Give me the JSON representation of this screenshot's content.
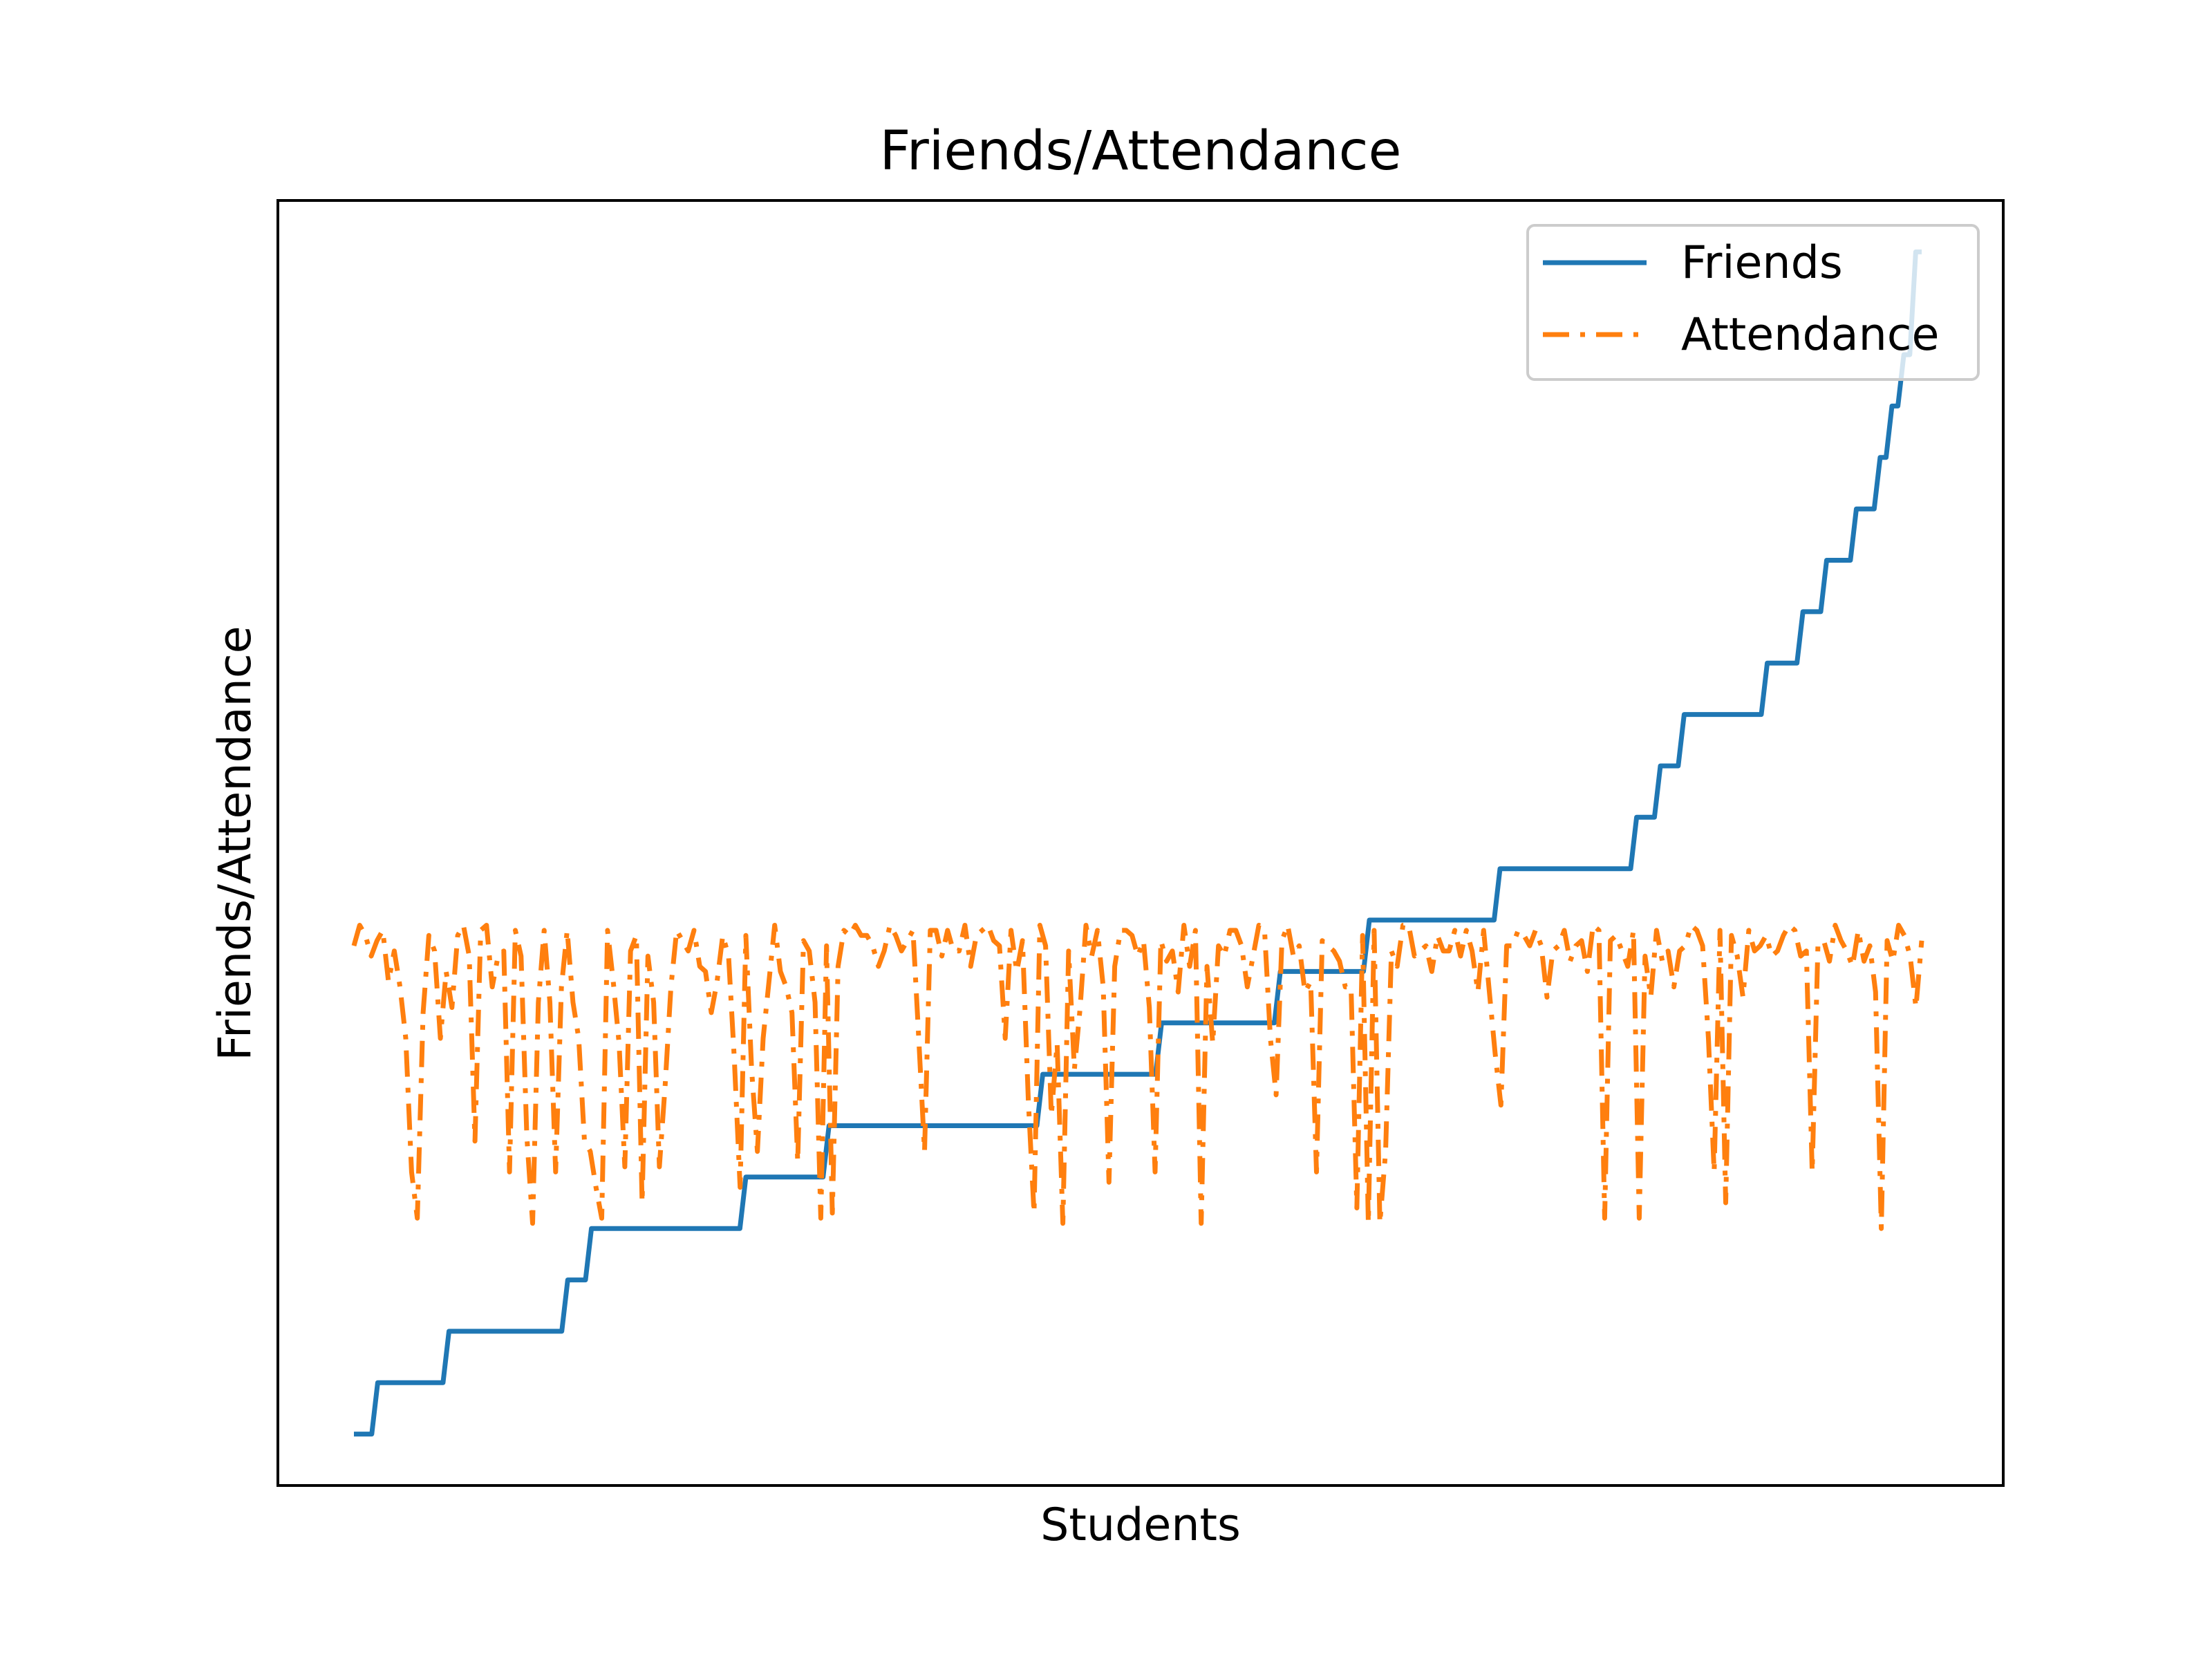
{
  "chart_data": {
    "type": "line",
    "title": "Friends/Attendance",
    "xlabel": "Students",
    "ylabel": "Friends/Attendance",
    "x_ticks_visible": false,
    "y_ticks_visible": false,
    "grid": false,
    "legend_position": "upper right",
    "ylim": [
      0,
      25
    ],
    "series": [
      {
        "name": "Friends",
        "color": "#1f77b4",
        "linestyle": "solid",
        "values": [
          1,
          1,
          1,
          1,
          2,
          2,
          2,
          2,
          2,
          2,
          2,
          2,
          2,
          2,
          2,
          2,
          3,
          3,
          3,
          3,
          3,
          3,
          3,
          3,
          3,
          3,
          3,
          3,
          3,
          3,
          3,
          3,
          3,
          3,
          3,
          3,
          4,
          4,
          4,
          4,
          5,
          5,
          5,
          5,
          5,
          5,
          5,
          5,
          5,
          5,
          5,
          5,
          5,
          5,
          5,
          5,
          5,
          5,
          5,
          5,
          5,
          5,
          5,
          5,
          5,
          5,
          6,
          6,
          6,
          6,
          6,
          6,
          6,
          6,
          6,
          6,
          6,
          6,
          6,
          6,
          7,
          7,
          7,
          7,
          7,
          7,
          7,
          7,
          7,
          7,
          7,
          7,
          7,
          7,
          7,
          7,
          7,
          7,
          7,
          7,
          7,
          7,
          7,
          7,
          7,
          7,
          7,
          7,
          7,
          7,
          7,
          7,
          7,
          7,
          7,
          7,
          8,
          8,
          8,
          8,
          8,
          8,
          8,
          8,
          8,
          8,
          8,
          8,
          8,
          8,
          8,
          8,
          8,
          8,
          8,
          8,
          9,
          9,
          9,
          9,
          9,
          9,
          9,
          9,
          9,
          9,
          9,
          9,
          9,
          9,
          9,
          9,
          9,
          9,
          9,
          9,
          10,
          10,
          10,
          10,
          10,
          10,
          10,
          10,
          10,
          10,
          10,
          10,
          10,
          10,
          10,
          11,
          11,
          11,
          11,
          11,
          11,
          11,
          11,
          11,
          11,
          11,
          11,
          11,
          11,
          11,
          11,
          11,
          11,
          11,
          11,
          11,
          11,
          12,
          12,
          12,
          12,
          12,
          12,
          12,
          12,
          12,
          12,
          12,
          12,
          12,
          12,
          12,
          12,
          12,
          12,
          12,
          12,
          12,
          12,
          12,
          13,
          13,
          13,
          13,
          14,
          14,
          14,
          14,
          15,
          15,
          15,
          15,
          15,
          15,
          15,
          15,
          15,
          15,
          15,
          15,
          15,
          15,
          16,
          16,
          16,
          16,
          16,
          16,
          17,
          17,
          17,
          17,
          18,
          18,
          18,
          18,
          18,
          19,
          19,
          19,
          19,
          20,
          20,
          21,
          21,
          22,
          22,
          24,
          24
        ]
      },
      {
        "name": "Attendance",
        "color": "#ff7f0e",
        "linestyle": "dashdot",
        "values": [
          10.5,
          10.9,
          10.7,
          10.3,
          10.6,
          10.8,
          9.8,
          10.4,
          9.7,
          8.7,
          6.1,
          5.2,
          9.2,
          10.7,
          10.4,
          8.7,
          10.0,
          9.3,
          10.7,
          10.9,
          10.3,
          6.7,
          10.8,
          10.9,
          9.7,
          10.3,
          10.4,
          6.1,
          10.8,
          10.3,
          6.8,
          5.1,
          9.4,
          10.8,
          9.4,
          6.1,
          9.7,
          10.8,
          9.4,
          8.7,
          6.7,
          6.5,
          5.8,
          5.2,
          10.8,
          9.8,
          8.6,
          6.2,
          10.4,
          10.7,
          5.5,
          10.3,
          9.4,
          6.2,
          7.8,
          9.7,
          10.8,
          10.6,
          10.4,
          10.8,
          10.1,
          10.0,
          9.2,
          9.8,
          10.7,
          10.3,
          8.3,
          5.8,
          10.7,
          8.1,
          6.5,
          8.7,
          9.8,
          10.9,
          10.0,
          9.7,
          9.2,
          6.3,
          10.6,
          10.4,
          9.4,
          5.2,
          10.5,
          5.3,
          10.1,
          10.8,
          10.7,
          10.9,
          10.7,
          10.7,
          10.5,
          10.1,
          10.4,
          10.9,
          10.7,
          10.4,
          10.6,
          10.8,
          8.7,
          6.5,
          10.8,
          10.8,
          10.3,
          10.8,
          10.4,
          10.4,
          10.9,
          10.1,
          10.7,
          10.8,
          10.9,
          10.6,
          10.5,
          8.7,
          10.8,
          10.0,
          10.6,
          7.5,
          5.3,
          10.9,
          10.5,
          7.2,
          8.6,
          5.1,
          10.4,
          8.1,
          9.3,
          10.9,
          10.3,
          10.8,
          9.7,
          5.9,
          10.1,
          10.8,
          10.8,
          10.7,
          10.3,
          10.6,
          9.3,
          6.1,
          10.6,
          10.2,
          10.4,
          9.6,
          10.9,
          10.1,
          10.8,
          5.1,
          10.1,
          8.6,
          10.5,
          10.3,
          10.8,
          10.8,
          10.5,
          9.7,
          10.3,
          10.9,
          10.8,
          8.7,
          7.6,
          10.6,
          10.9,
          10.3,
          10.5,
          9.6,
          9.8,
          6.1,
          10.6,
          10.5,
          10.4,
          10.2,
          9.7,
          9.7,
          5.4,
          10.7,
          5.1,
          10.8,
          5.1,
          6.5,
          10.4,
          10.1,
          10.9,
          10.9,
          10.3,
          10.4,
          10.5,
          10.0,
          10.7,
          10.4,
          10.4,
          10.8,
          10.3,
          10.8,
          10.4,
          9.6,
          10.8,
          9.6,
          8.4,
          7.4,
          10.5,
          10.5,
          10.8,
          10.7,
          10.5,
          10.8,
          10.5,
          9.5,
          10.4,
          10.5,
          10.8,
          10.2,
          10.5,
          10.6,
          10.0,
          10.9,
          10.8,
          5.2,
          10.6,
          10.7,
          10.4,
          10.1,
          10.8,
          5.2,
          10.3,
          9.5,
          10.8,
          10.2,
          10.4,
          9.7,
          10.4,
          10.5,
          10.9,
          10.8,
          10.5,
          8.7,
          6.1,
          10.8,
          5.5,
          10.7,
          10.3,
          9.5,
          10.8,
          10.4,
          10.5,
          10.7,
          10.3,
          10.4,
          10.7,
          10.9,
          10.8,
          10.3,
          10.4,
          6.1,
          10.5,
          10.6,
          10.2,
          10.9,
          10.6,
          10.4,
          10.1,
          10.8,
          10.2,
          10.5,
          9.6,
          5.0,
          10.6,
          10.2,
          10.9,
          10.7,
          10.3,
          9.3,
          10.6
        ]
      }
    ]
  }
}
